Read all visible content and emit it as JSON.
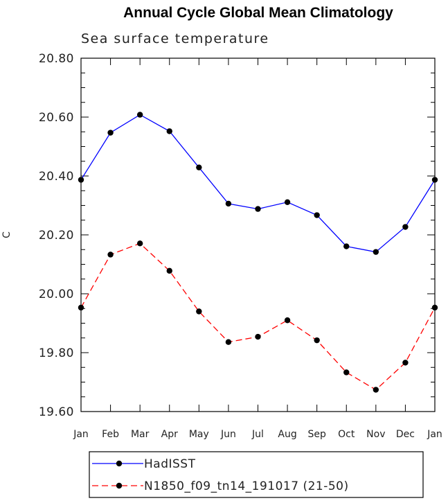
{
  "chart_data": {
    "type": "line",
    "title": "Annual Cycle Global Mean Climatology",
    "subtitle": "Sea surface temperature",
    "ylabel": "C",
    "xlabel": "",
    "categories": [
      "Jan",
      "Feb",
      "Mar",
      "Apr",
      "May",
      "Jun",
      "Jul",
      "Aug",
      "Sep",
      "Oct",
      "Nov",
      "Dec",
      "Jan"
    ],
    "ylim": [
      19.6,
      20.8
    ],
    "yticks": [
      "19.60",
      "19.80",
      "20.00",
      "20.20",
      "20.40",
      "20.60",
      "20.80"
    ],
    "grid": false,
    "legend_position": "bottom",
    "series": [
      {
        "name": "HadISST",
        "color": "#0000ff",
        "dash": "solid",
        "marker": "circle",
        "values": [
          20.387,
          20.547,
          20.608,
          20.552,
          20.429,
          20.306,
          20.288,
          20.311,
          20.267,
          20.161,
          20.142,
          20.227,
          20.387
        ]
      },
      {
        "name": "N1850_f09_tn14_191017 (21-50)",
        "color": "#ff0000",
        "dash": "dashed",
        "marker": "circle",
        "values": [
          19.953,
          20.133,
          20.171,
          20.078,
          19.94,
          19.836,
          19.854,
          19.91,
          19.842,
          19.733,
          19.674,
          19.766,
          19.953
        ]
      }
    ]
  }
}
